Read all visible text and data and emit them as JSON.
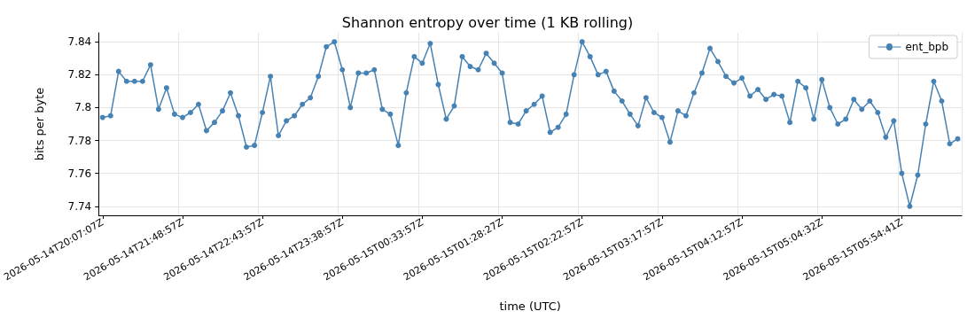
{
  "chart_data": {
    "type": "line",
    "title": "Shannon entropy over time (1 KB rolling)",
    "xlabel": "time (UTC)",
    "ylabel": "bits per byte",
    "categories": [
      "2026-05-14T20:07:07Z",
      null,
      null,
      null,
      null,
      null,
      null,
      null,
      null,
      null,
      "2026-05-14T21:48:57Z",
      null,
      null,
      null,
      null,
      null,
      null,
      null,
      null,
      null,
      "2026-05-14T22:43:57Z",
      null,
      null,
      null,
      null,
      null,
      null,
      null,
      null,
      null,
      "2026-05-14T23:38:57Z",
      null,
      null,
      null,
      null,
      null,
      null,
      null,
      null,
      null,
      "2026-05-15T00:33:57Z",
      null,
      null,
      null,
      null,
      null,
      null,
      null,
      null,
      null,
      "2026-05-15T01:28:27Z",
      null,
      null,
      null,
      null,
      null,
      null,
      null,
      null,
      null,
      "2026-05-15T02:22:57Z",
      null,
      null,
      null,
      null,
      null,
      null,
      null,
      null,
      null,
      "2026-05-15T03:17:57Z",
      null,
      null,
      null,
      null,
      null,
      null,
      null,
      null,
      null,
      "2026-05-15T04:12:57Z",
      null,
      null,
      null,
      null,
      null,
      null,
      null,
      null,
      null,
      "2026-05-15T05:04:32Z",
      null,
      null,
      null,
      null,
      null,
      null,
      null,
      null,
      null,
      "2026-05-15T05:54:41Z",
      null,
      null,
      null,
      null,
      null,
      null,
      null
    ],
    "series": [
      {
        "name": "ent_bpb",
        "color": "#4682b4",
        "values": [
          7.794,
          7.795,
          7.822,
          7.816,
          7.816,
          7.816,
          7.826,
          7.799,
          7.812,
          7.796,
          7.794,
          7.797,
          7.802,
          7.786,
          7.791,
          7.798,
          7.809,
          7.795,
          7.776,
          7.777,
          7.797,
          7.819,
          7.783,
          7.792,
          7.795,
          7.802,
          7.806,
          7.819,
          7.837,
          7.84,
          7.823,
          7.8,
          7.821,
          7.821,
          7.823,
          7.799,
          7.796,
          7.777,
          7.809,
          7.831,
          7.827,
          7.839,
          7.814,
          7.793,
          7.801,
          7.831,
          7.825,
          7.823,
          7.833,
          7.827,
          7.821,
          7.791,
          7.79,
          7.798,
          7.802,
          7.807,
          7.785,
          7.788,
          7.796,
          7.82,
          7.84,
          7.831,
          7.82,
          7.822,
          7.81,
          7.804,
          7.796,
          7.789,
          7.806,
          7.797,
          7.794,
          7.779,
          7.798,
          7.795,
          7.809,
          7.821,
          7.836,
          7.828,
          7.819,
          7.815,
          7.818,
          7.807,
          7.811,
          7.805,
          7.808,
          7.807,
          7.791,
          7.816,
          7.812,
          7.793,
          7.817,
          7.8,
          7.79,
          7.793,
          7.805,
          7.799,
          7.804,
          7.797,
          7.782,
          7.792,
          7.76,
          7.74,
          7.759,
          7.79,
          7.816,
          7.804,
          7.778,
          7.781
        ]
      }
    ],
    "ylim": [
      7.7345,
      7.8455
    ],
    "yticks": [
      7.74,
      7.76,
      7.78,
      7.8,
      7.82,
      7.84
    ],
    "grid": true,
    "legend": "top right",
    "marker": "circle",
    "line_style": "solid"
  }
}
